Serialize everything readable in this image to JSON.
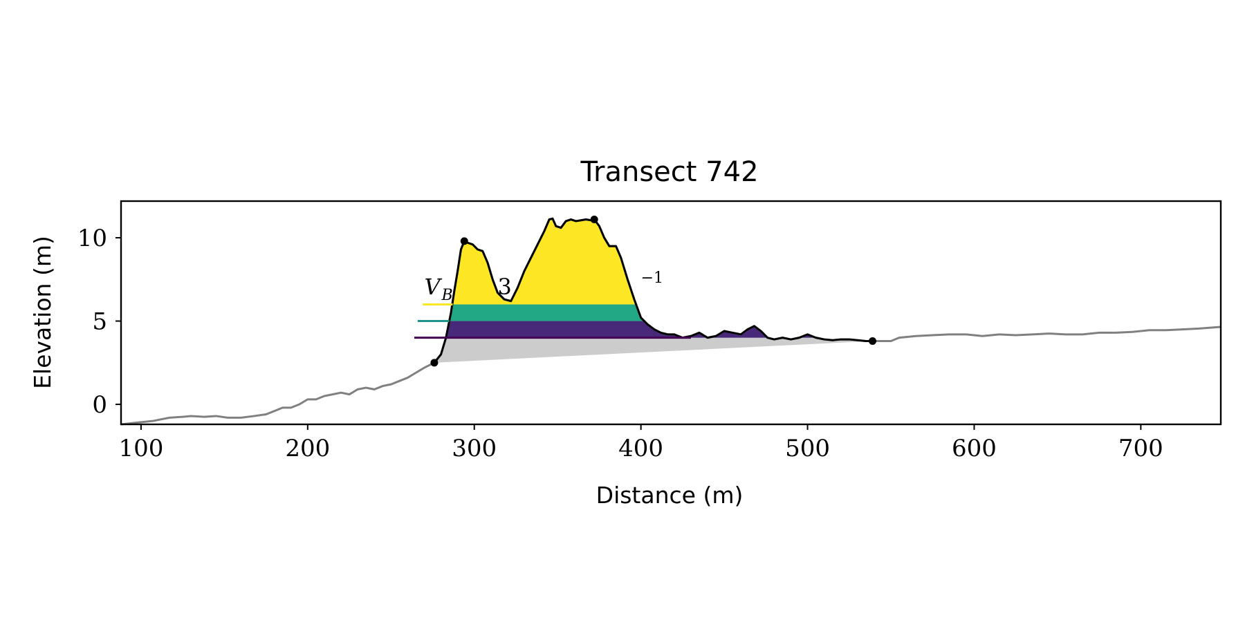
{
  "chart_data": {
    "type": "line",
    "title": "Transect 742",
    "xlabel": "Distance (m)",
    "ylabel": "Elevation (m)",
    "xlim": [
      88,
      748
    ],
    "ylim": [
      -1.2,
      12.2
    ],
    "xticks": [
      "100",
      "200",
      "300",
      "400",
      "500",
      "600",
      "700"
    ],
    "yticks": [
      "0",
      "5",
      "10"
    ],
    "grid": false,
    "legend_overlay_text": {
      "prefix": "V",
      "prefix_sub": "B",
      "mid": "3",
      "tail": "−1"
    },
    "colors": {
      "background_profile": "#808080",
      "dune_profile": "#000000",
      "base_fill": "#cccccc",
      "level_high": "#fde725",
      "level_mid": "#21918c",
      "level_low": "#440154",
      "band_mid": "#22a884",
      "band_low": "#482878"
    },
    "levels": [
      {
        "name": "high",
        "elevation": 6.0
      },
      {
        "name": "mid",
        "elevation": 5.0
      },
      {
        "name": "low",
        "elevation": 4.0
      }
    ],
    "key_points": [
      {
        "name": "dune-toe",
        "x": 276,
        "y": 2.5
      },
      {
        "name": "first-crest",
        "x": 294,
        "y": 9.8
      },
      {
        "name": "dune-crest",
        "x": 372,
        "y": 11.1
      },
      {
        "name": "dune-heel",
        "x": 539,
        "y": 3.8
      }
    ],
    "profile": {
      "x": [
        88,
        97,
        107,
        117,
        125,
        130,
        138,
        145,
        152,
        160,
        168,
        175,
        180,
        185,
        190,
        195,
        200,
        205,
        210,
        215,
        220,
        225,
        230,
        235,
        240,
        245,
        250,
        255,
        260,
        265,
        270,
        276,
        280,
        283,
        286,
        288,
        290,
        292,
        294,
        296,
        299,
        302,
        305,
        308,
        311,
        314,
        318,
        322,
        326,
        330,
        334,
        338,
        342,
        345,
        347,
        349,
        352,
        355,
        358,
        361,
        364,
        367,
        370,
        372,
        375,
        378,
        381,
        385,
        388,
        392,
        396,
        400,
        404,
        408,
        412,
        416,
        420,
        425,
        430,
        435,
        440,
        445,
        450,
        455,
        460,
        464,
        468,
        472,
        476,
        480,
        485,
        490,
        495,
        500,
        505,
        510,
        515,
        520,
        525,
        530,
        535,
        539,
        545,
        550,
        555,
        565,
        575,
        585,
        595,
        605,
        615,
        625,
        635,
        645,
        655,
        665,
        675,
        685,
        695,
        705,
        715,
        725,
        735,
        748
      ],
      "y": [
        -1.2,
        -1.1,
        -1.0,
        -0.8,
        -0.75,
        -0.7,
        -0.75,
        -0.7,
        -0.8,
        -0.8,
        -0.7,
        -0.6,
        -0.4,
        -0.2,
        -0.2,
        0.0,
        0.3,
        0.3,
        0.5,
        0.6,
        0.7,
        0.6,
        0.9,
        1.0,
        0.9,
        1.1,
        1.2,
        1.4,
        1.6,
        1.9,
        2.2,
        2.5,
        3.0,
        4.0,
        5.5,
        6.8,
        8.0,
        9.3,
        9.8,
        9.7,
        9.6,
        9.3,
        9.2,
        8.5,
        7.5,
        6.7,
        6.3,
        6.2,
        7.0,
        8.0,
        8.8,
        9.6,
        10.4,
        11.1,
        11.15,
        10.7,
        10.6,
        11.0,
        11.1,
        11.0,
        11.05,
        11.1,
        11.05,
        11.1,
        10.7,
        10.0,
        9.5,
        9.5,
        8.8,
        7.5,
        6.3,
        5.2,
        4.8,
        4.5,
        4.3,
        4.2,
        4.2,
        4.0,
        4.1,
        4.3,
        4.0,
        4.1,
        4.4,
        4.3,
        4.2,
        4.5,
        4.7,
        4.4,
        4.0,
        3.9,
        4.0,
        3.9,
        4.0,
        4.2,
        4.0,
        3.9,
        3.85,
        3.9,
        3.9,
        3.85,
        3.8,
        3.8,
        3.8,
        3.8,
        4.0,
        4.1,
        4.15,
        4.2,
        4.2,
        4.1,
        4.2,
        4.15,
        4.2,
        4.25,
        4.2,
        4.2,
        4.3,
        4.3,
        4.35,
        4.45,
        4.45,
        4.5,
        4.55,
        4.65
      ]
    }
  }
}
